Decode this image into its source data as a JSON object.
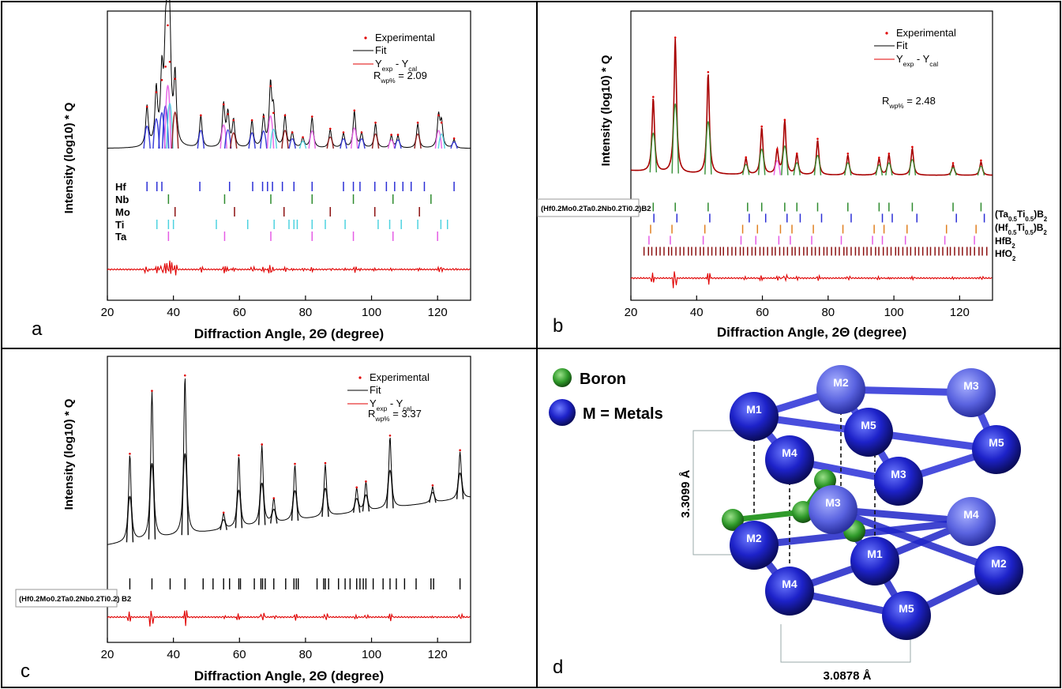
{
  "figure": {
    "panel_letters": [
      "a",
      "b",
      "c",
      "d"
    ]
  },
  "chart_data": [
    {
      "type": "line",
      "panel": "a",
      "xlabel": "Diffraction Angle, 2Θ (degree)",
      "ylabel": "Intensity (log10) * Q",
      "xlim": [
        20,
        130
      ],
      "xticks": [
        20,
        40,
        60,
        80,
        100,
        120
      ],
      "legend": [
        "Experimental",
        "Fit",
        "Y",
        "exp",
        " - Y",
        "cal"
      ],
      "rwp": {
        "prefix": "R",
        "sub": "wp%",
        "value": " = 2.09"
      },
      "peaks": [
        {
          "x": 32.0,
          "h": 0.33,
          "c": "#2b2fd6"
        },
        {
          "x": 34.8,
          "h": 0.45,
          "c": "#2b2fd6"
        },
        {
          "x": 36.5,
          "h": 0.55,
          "c": "#2b2fd6"
        },
        {
          "x": 37.6,
          "h": 0.66,
          "c": "#2b2fd6"
        },
        {
          "x": 38.3,
          "h": 1.0,
          "c": "#e55ce5"
        },
        {
          "x": 38.9,
          "h": 0.7,
          "c": "#4dd2e0"
        },
        {
          "x": 40.5,
          "h": 0.56,
          "c": "#8b1010"
        },
        {
          "x": 48.3,
          "h": 0.26,
          "c": "#2b2fd6"
        },
        {
          "x": 55.2,
          "h": 0.35,
          "c": "#e55ce5"
        },
        {
          "x": 56.5,
          "h": 0.27,
          "c": "#2b2fd6"
        },
        {
          "x": 58.2,
          "h": 0.22,
          "c": "#8b1010"
        },
        {
          "x": 63.8,
          "h": 0.22,
          "c": "#2b2fd6"
        },
        {
          "x": 67.3,
          "h": 0.25,
          "c": "#2b2fd6"
        },
        {
          "x": 69.4,
          "h": 0.5,
          "c": "#e55ce5"
        },
        {
          "x": 70.3,
          "h": 0.28,
          "c": "#4dd2e0"
        },
        {
          "x": 73.8,
          "h": 0.26,
          "c": "#8b1010"
        },
        {
          "x": 76.0,
          "h": 0.12,
          "c": "#2b2fd6"
        },
        {
          "x": 79.2,
          "h": 0.08,
          "c": "#4dd2e0"
        },
        {
          "x": 82.0,
          "h": 0.25,
          "c": "#e55ce5"
        },
        {
          "x": 87.5,
          "h": 0.15,
          "c": "#8b1010"
        },
        {
          "x": 91.5,
          "h": 0.12,
          "c": "#2b2fd6"
        },
        {
          "x": 94.8,
          "h": 0.3,
          "c": "#e55ce5"
        },
        {
          "x": 97.0,
          "h": 0.12,
          "c": "#2b2fd6"
        },
        {
          "x": 101.2,
          "h": 0.2,
          "c": "#8b1010"
        },
        {
          "x": 106.0,
          "h": 0.1,
          "c": "#e55ce5"
        },
        {
          "x": 108.0,
          "h": 0.1,
          "c": "#2b2fd6"
        },
        {
          "x": 114.0,
          "h": 0.2,
          "c": "#8b1010"
        },
        {
          "x": 120.3,
          "h": 0.26,
          "c": "#e55ce5"
        },
        {
          "x": 121.2,
          "h": 0.2,
          "c": "#4dd2e0"
        },
        {
          "x": 125.0,
          "h": 0.07,
          "c": "#2b2fd6"
        }
      ],
      "phase_rows": [
        {
          "name": "Hf",
          "color": "#2b2fd6",
          "ticks": [
            32,
            35,
            36.5,
            48,
            57,
            64,
            67,
            68.5,
            70,
            73,
            76.5,
            82,
            91.5,
            94.5,
            96.5,
            101,
            104.5,
            107,
            109.5,
            112,
            116,
            125
          ]
        },
        {
          "name": "Nb",
          "color": "#2e8b2e",
          "ticks": [
            38.5,
            55.5,
            69.5,
            82,
            94.5,
            106.5,
            118
          ]
        },
        {
          "name": "Mo",
          "color": "#8b1010",
          "ticks": [
            40.5,
            58.5,
            73.5,
            87.5,
            101,
            114.5
          ]
        },
        {
          "name": "Ti",
          "color": "#4dd2e0",
          "ticks": [
            35,
            38.5,
            40,
            53,
            62.5,
            70.5,
            75,
            76.5,
            77.5,
            82,
            86,
            92,
            102,
            105.5,
            109,
            114,
            121,
            123
          ]
        },
        {
          "name": "Ta",
          "color": "#e55ce5",
          "ticks": [
            38.5,
            55.5,
            69.5,
            82,
            94.5,
            106.5,
            120
          ]
        }
      ]
    },
    {
      "type": "line",
      "panel": "b",
      "xlabel": "Diffraction Angle, 2Θ (degree)",
      "ylabel": "Intensity (log10) * Q",
      "xlim": [
        20,
        130
      ],
      "xticks": [
        20,
        40,
        60,
        80,
        100,
        120
      ],
      "legend": [
        "Experimental",
        "Fit",
        "Y",
        "exp",
        " - Y",
        "cal"
      ],
      "rwp": {
        "prefix": "R",
        "sub": "wp%",
        "value": " = 2.48"
      },
      "peaks": [
        {
          "x": 26.8,
          "h": 0.55,
          "c": "#2e8b2e"
        },
        {
          "x": 33.5,
          "h": 1.0,
          "c": "#2e8b2e"
        },
        {
          "x": 43.5,
          "h": 0.75,
          "c": "#2e8b2e"
        },
        {
          "x": 55.0,
          "h": 0.12,
          "c": "#2e8b2e"
        },
        {
          "x": 59.8,
          "h": 0.35,
          "c": "#2e8b2e"
        },
        {
          "x": 64.5,
          "h": 0.18,
          "c": "#e55ce5"
        },
        {
          "x": 66.8,
          "h": 0.4,
          "c": "#2e8b2e"
        },
        {
          "x": 70.5,
          "h": 0.15,
          "c": "#2e8b2e"
        },
        {
          "x": 76.8,
          "h": 0.26,
          "c": "#2e8b2e"
        },
        {
          "x": 86.0,
          "h": 0.15,
          "c": "#2e8b2e"
        },
        {
          "x": 95.5,
          "h": 0.12,
          "c": "#2e8b2e"
        },
        {
          "x": 98.5,
          "h": 0.15,
          "c": "#2e8b2e"
        },
        {
          "x": 105.6,
          "h": 0.2,
          "c": "#2e8b2e"
        },
        {
          "x": 118.0,
          "h": 0.08,
          "c": "#2e8b2e"
        },
        {
          "x": 126.5,
          "h": 0.1,
          "c": "#2e8b2e"
        }
      ],
      "phase_rows": [
        {
          "name": "(Hf0.2Mo0.2Ta0.2Nb0.2Ti0.2)B2",
          "color": "#2e8b2e",
          "ticks": [
            26.8,
            33.5,
            43.5,
            55.5,
            59.8,
            66.8,
            70.5,
            76.8,
            86,
            95.5,
            98.5,
            105.6,
            118,
            126.5
          ]
        },
        {
          "name": "(Ta0.5Ti0.5)B2",
          "color": "#2b2fd6",
          "ticks": [
            27,
            34,
            44,
            56,
            61,
            67.5,
            71.5,
            78,
            87,
            96.5,
            99.5,
            107,
            119,
            127.5
          ]
        },
        {
          "name": "(Hf0.5Ti0.5)B2",
          "color": "#e08020",
          "ticks": [
            26,
            32.5,
            42.5,
            54,
            58.5,
            65.5,
            69,
            75.5,
            84.5,
            94,
            97,
            104,
            116,
            125
          ]
        },
        {
          "name": "HfB2",
          "color": "#e55ce5",
          "ticks": [
            25.5,
            32,
            42,
            53.5,
            58,
            65,
            68.5,
            75,
            84,
            93.5,
            96.5,
            103.5,
            115.5,
            124.5
          ]
        },
        {
          "name": "HfO2",
          "color": "#8b1010",
          "ticks": "dense"
        }
      ],
      "phase_labels": [
        {
          "main": "(Ta",
          "s1": "0.5",
          "mid": "Ti",
          "s2": "0.5",
          "end": ")B",
          "s3": "2"
        },
        {
          "main": "(Hf",
          "s1": "0.5",
          "mid": "Ti",
          "s2": "0.5",
          "end": ")B",
          "s3": "2"
        },
        {
          "main": "HfB",
          "s3": "2"
        },
        {
          "main": "HfO",
          "s3": "2"
        }
      ],
      "boxed_phase": "(Hf0.2Mo0.2Ta0.2Nb0.2Ti0.2)B2"
    },
    {
      "type": "line",
      "panel": "c",
      "xlabel": "Diffraction Angle, 2Θ (degree)",
      "ylabel": "Intensity (log10) * Q",
      "xlim": [
        20,
        130
      ],
      "xticks": [
        20,
        40,
        60,
        80,
        100,
        120
      ],
      "legend": [
        "Experimental",
        "Fit",
        "Y",
        "exp",
        " - Y",
        "cal"
      ],
      "rwp": {
        "prefix": "R",
        "sub": "wp%",
        "value": " = 3.37"
      },
      "peaks": [
        {
          "x": 26.8,
          "h": 0.55,
          "c": "#000"
        },
        {
          "x": 33.5,
          "h": 0.93,
          "c": "#000"
        },
        {
          "x": 43.5,
          "h": 1.0,
          "c": "#000"
        },
        {
          "x": 55.2,
          "h": 0.1,
          "c": "#000"
        },
        {
          "x": 59.8,
          "h": 0.45,
          "c": "#000"
        },
        {
          "x": 66.8,
          "h": 0.5,
          "c": "#000"
        },
        {
          "x": 70.4,
          "h": 0.15,
          "c": "#000"
        },
        {
          "x": 76.8,
          "h": 0.35,
          "c": "#000"
        },
        {
          "x": 86.0,
          "h": 0.33,
          "c": "#000"
        },
        {
          "x": 95.5,
          "h": 0.15,
          "c": "#000"
        },
        {
          "x": 98.3,
          "h": 0.18,
          "c": "#000"
        },
        {
          "x": 105.6,
          "h": 0.45,
          "c": "#000"
        },
        {
          "x": 118.5,
          "h": 0.1,
          "c": "#000"
        },
        {
          "x": 126.8,
          "h": 0.3,
          "c": "#000"
        }
      ],
      "phase_ticks": [
        26.8,
        33.5,
        39,
        43.5,
        49,
        52,
        55.2,
        57,
        59.8,
        60.3,
        64.5,
        66.5,
        67,
        67.8,
        70.4,
        74,
        76.5,
        77.2,
        77.8,
        83.5,
        85.5,
        86,
        87,
        90,
        92,
        93.5,
        95.5,
        96.5,
        97.5,
        98.3,
        100.5,
        103.5,
        105.6,
        107.5,
        110,
        113.5,
        118,
        118.8,
        126.8
      ],
      "boxed_phase": "(Hf0.2Mo0.2Ta0.2Nb0.2Ti0.2) B2"
    }
  ],
  "structure": {
    "legend_boron": "Boron",
    "legend_metals": "M = Metals",
    "dim_vertical": "3.3099 Å",
    "dim_horizontal": "3.0878 Å",
    "atoms_top": [
      "M1",
      "M2",
      "M3",
      "M5",
      "M4",
      "M5",
      "M3"
    ],
    "atoms_bottom": [
      "M3",
      "M4",
      "M2",
      "M1",
      "M2",
      "M4",
      "M5"
    ]
  }
}
